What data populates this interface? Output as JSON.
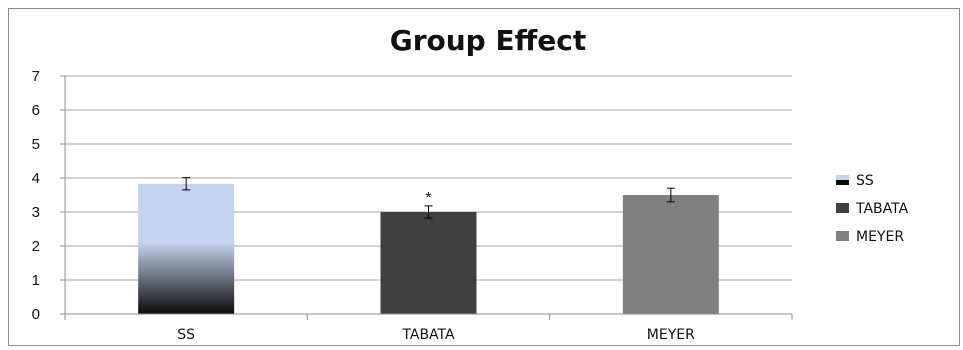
{
  "chart_data": {
    "type": "bar",
    "title": "Group Effect",
    "xlabel": "",
    "ylabel": "",
    "ylim": [
      0,
      7
    ],
    "yticks": [
      0,
      1,
      2,
      3,
      4,
      5,
      6,
      7
    ],
    "grid": true,
    "legend_position": "right",
    "categories": [
      "SS",
      "TABATA",
      "MEYER"
    ],
    "series": [
      {
        "name": "SS",
        "values": [
          3.83,
          null,
          null
        ],
        "errors": [
          0.18,
          null,
          null
        ],
        "color": "#c5d3ee",
        "gradient_bottom": "#0a0a0a"
      },
      {
        "name": "TABATA",
        "values": [
          null,
          3.0,
          null
        ],
        "errors": [
          null,
          0.18,
          null
        ],
        "color": "#404040"
      },
      {
        "name": "MEYER",
        "values": [
          null,
          null,
          3.5
        ],
        "errors": [
          null,
          null,
          0.2
        ],
        "color": "#808080"
      }
    ],
    "annotations": [
      {
        "category": "TABATA",
        "text": "*"
      }
    ]
  }
}
